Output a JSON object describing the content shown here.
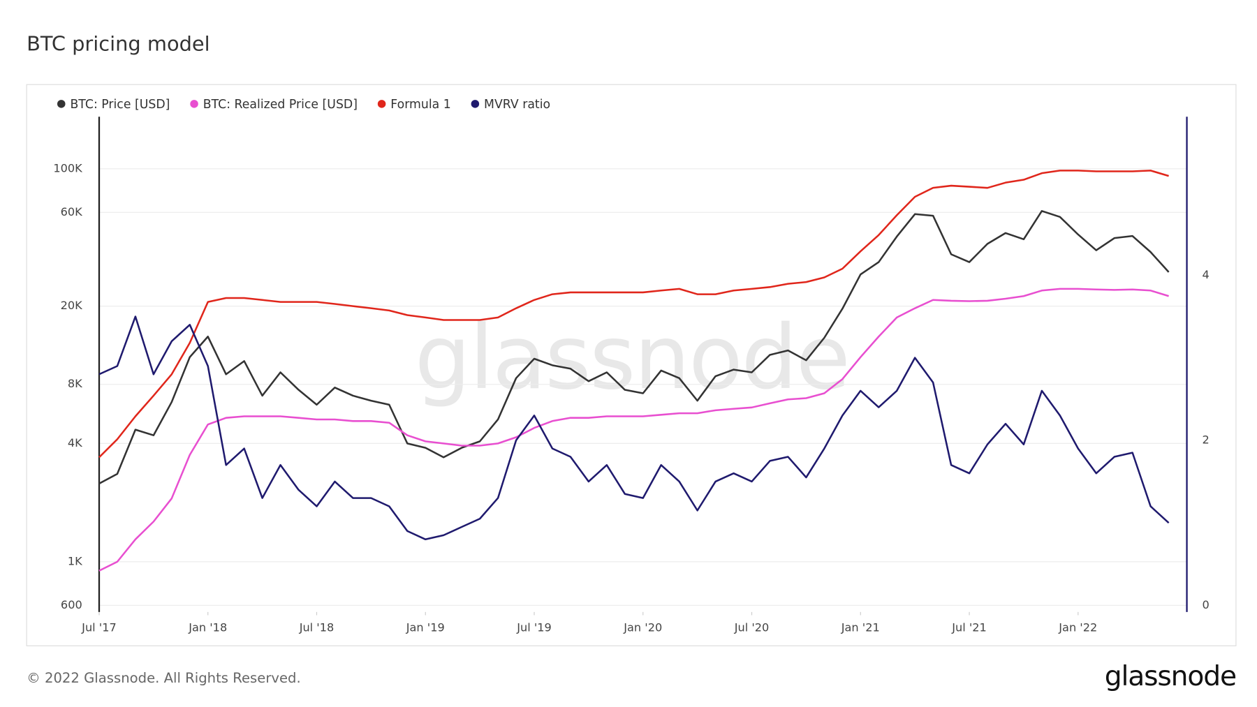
{
  "chart_data": {
    "type": "line",
    "title": "BTC pricing model",
    "x": [
      "2017-07",
      "2017-08",
      "2017-09",
      "2017-10",
      "2017-11",
      "2017-12",
      "2018-01",
      "2018-02",
      "2018-03",
      "2018-04",
      "2018-05",
      "2018-06",
      "2018-07",
      "2018-08",
      "2018-09",
      "2018-10",
      "2018-11",
      "2018-12",
      "2019-01",
      "2019-02",
      "2019-03",
      "2019-04",
      "2019-05",
      "2019-06",
      "2019-07",
      "2019-08",
      "2019-09",
      "2019-10",
      "2019-11",
      "2019-12",
      "2020-01",
      "2020-02",
      "2020-03",
      "2020-04",
      "2020-05",
      "2020-06",
      "2020-07",
      "2020-08",
      "2020-09",
      "2020-10",
      "2020-11",
      "2020-12",
      "2021-01",
      "2021-02",
      "2021-03",
      "2021-04",
      "2021-05",
      "2021-06",
      "2021-07",
      "2021-08",
      "2021-09",
      "2021-10",
      "2021-11",
      "2021-12",
      "2022-01",
      "2022-02",
      "2022-03",
      "2022-04",
      "2022-05",
      "2022-06"
    ],
    "xlim": [
      "2017-07",
      "2022-07"
    ],
    "xticks": [
      {
        "value": "2017-07",
        "label": "Jul '17"
      },
      {
        "value": "2018-01",
        "label": "Jan '18"
      },
      {
        "value": "2018-07",
        "label": "Jul '18"
      },
      {
        "value": "2019-01",
        "label": "Jan '19"
      },
      {
        "value": "2019-07",
        "label": "Jul '19"
      },
      {
        "value": "2020-01",
        "label": "Jan '20"
      },
      {
        "value": "2020-07",
        "label": "Jul '20"
      },
      {
        "value": "2021-01",
        "label": "Jan '21"
      },
      {
        "value": "2021-07",
        "label": "Jul '21"
      },
      {
        "value": "2022-01",
        "label": "Jan '22"
      }
    ],
    "ylim": [
      555,
      184000
    ],
    "log_scale": true,
    "grid": true,
    "yticks": [
      600,
      {
        "value": 1000,
        "label": "1K"
      },
      {
        "value": 4000,
        "label": "4K"
      },
      {
        "value": 8000,
        "label": "8K"
      },
      {
        "value": 20000,
        "label": "20K"
      },
      {
        "value": 60000,
        "label": "60K"
      },
      {
        "value": 100000,
        "label": "100K"
      }
    ],
    "y2lim": [
      -0.08,
      5.92
    ],
    "y2ticks": [
      0,
      2,
      4
    ],
    "legend": "top-left",
    "series": [
      {
        "name": "BTC: Price [USD]",
        "color": "#333333",
        "values": [
          2500,
          2800,
          4700,
          4400,
          6500,
          11000,
          14000,
          9000,
          10500,
          7000,
          9200,
          7500,
          6300,
          7700,
          7000,
          6600,
          6300,
          4000,
          3800,
          3400,
          3800,
          4100,
          5300,
          8600,
          10800,
          10000,
          9600,
          8300,
          9200,
          7500,
          7200,
          9400,
          8600,
          6600,
          8800,
          9500,
          9200,
          11300,
          11900,
          10600,
          13800,
          19400,
          29000,
          33500,
          45200,
          58800,
          57700,
          36700,
          33500,
          41500,
          47100,
          43800,
          61000,
          56900,
          46300,
          38500,
          44400,
          45500,
          37700,
          29800
        ]
      },
      {
        "name": "BTC: Realized Price [USD]",
        "color": "#e84fd0",
        "values": [
          900,
          1000,
          1300,
          1600,
          2100,
          3500,
          5000,
          5400,
          5500,
          5500,
          5500,
          5400,
          5300,
          5300,
          5200,
          5200,
          5100,
          4400,
          4100,
          4000,
          3900,
          3900,
          4000,
          4300,
          4800,
          5200,
          5400,
          5400,
          5500,
          5500,
          5500,
          5600,
          5700,
          5700,
          5900,
          6000,
          6100,
          6400,
          6700,
          6800,
          7200,
          8500,
          11000,
          14000,
          17500,
          19500,
          21500,
          21300,
          21200,
          21300,
          21800,
          22500,
          24000,
          24500,
          24500,
          24300,
          24200,
          24300,
          24000,
          22500
        ]
      },
      {
        "name": "Formula 1",
        "color": "#e0261b",
        "values": [
          3400,
          4200,
          5500,
          7000,
          9000,
          13000,
          21000,
          22000,
          22000,
          21500,
          21000,
          21000,
          21000,
          20500,
          20000,
          19500,
          19000,
          18000,
          17500,
          17000,
          17000,
          17000,
          17500,
          19500,
          21500,
          23000,
          23500,
          23500,
          23500,
          23500,
          23500,
          24000,
          24500,
          23000,
          23000,
          24000,
          24500,
          25000,
          26000,
          26500,
          28000,
          31000,
          38000,
          46000,
          58000,
          72000,
          80000,
          82000,
          81000,
          80000,
          85000,
          88000,
          95000,
          98000,
          98000,
          97000,
          97000,
          97000,
          98000,
          92000
        ]
      },
      {
        "name": "MVRV ratio",
        "color": "#1f1a6e",
        "axis": "y2",
        "values": [
          2.8,
          2.9,
          3.5,
          2.8,
          3.2,
          3.4,
          2.9,
          1.7,
          1.9,
          1.3,
          1.7,
          1.4,
          1.2,
          1.5,
          1.3,
          1.3,
          1.2,
          0.9,
          0.8,
          0.85,
          0.95,
          1.05,
          1.3,
          2.0,
          2.3,
          1.9,
          1.8,
          1.5,
          1.7,
          1.35,
          1.3,
          1.7,
          1.5,
          1.15,
          1.5,
          1.6,
          1.5,
          1.75,
          1.8,
          1.55,
          1.9,
          2.3,
          2.6,
          2.4,
          2.6,
          3.0,
          2.7,
          1.7,
          1.6,
          1.95,
          2.2,
          1.95,
          2.6,
          2.3,
          1.9,
          1.6,
          1.8,
          1.85,
          1.2,
          1.0
        ]
      }
    ]
  },
  "watermark": "glassnode",
  "footer": {
    "copyright": "© 2022 Glassnode. All Rights Reserved.",
    "logo": "glassnode"
  }
}
